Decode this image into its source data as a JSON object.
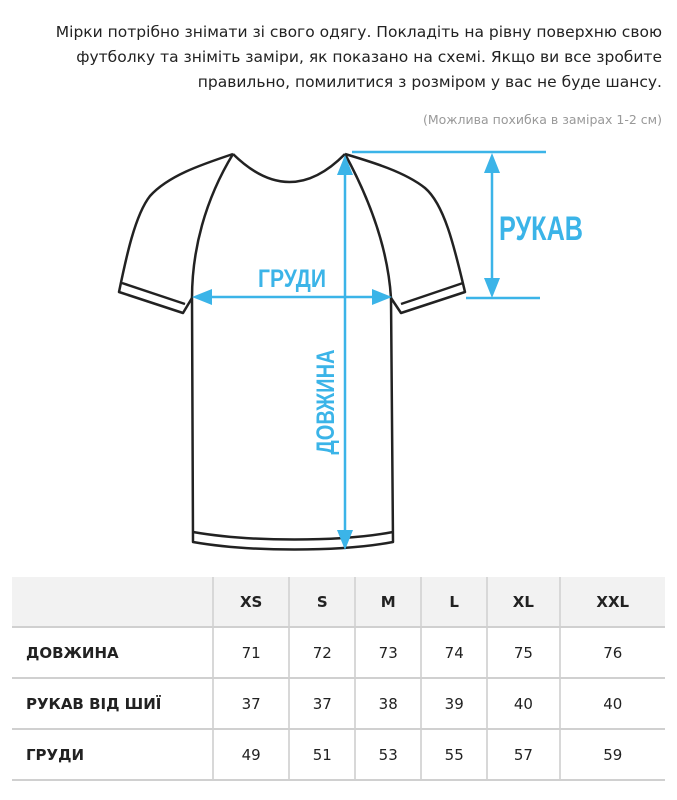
{
  "intro_text": "Мірки потрібно знімати зі свого одягу. Покладіть на рівну поверхню свою футболку та зніміть заміри, як показано на схемі. Якщо ви все зробите правильно, помилитися з розміром у вас не буде шансу.",
  "note": "(Можлива похибка в замірах 1-2 см)",
  "diagram": {
    "accent_color": "#3bb4e8",
    "labels": {
      "chest": "ГРУДИ",
      "sleeve": "РУКАВ",
      "length": "ДОВЖИНА"
    }
  },
  "table": {
    "headers": [
      "",
      "XS",
      "S",
      "M",
      "L",
      "XL",
      "XXL"
    ],
    "rows": [
      {
        "label": "ДОВЖИНА",
        "values": [
          "71",
          "72",
          "73",
          "74",
          "75",
          "76"
        ]
      },
      {
        "label": "РУКАВ ВІД ШИЇ",
        "values": [
          "37",
          "37",
          "38",
          "39",
          "40",
          "40"
        ]
      },
      {
        "label": "ГРУДИ",
        "values": [
          "49",
          "51",
          "53",
          "55",
          "57",
          "59"
        ]
      }
    ]
  }
}
